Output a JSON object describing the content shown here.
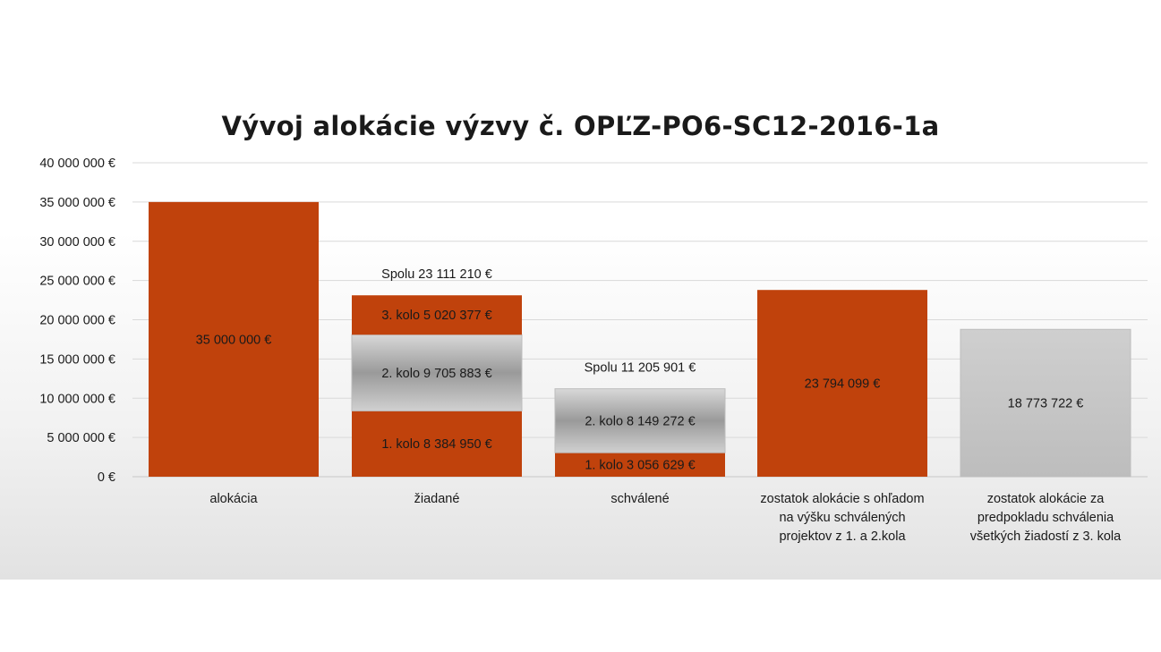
{
  "chart_data": {
    "type": "bar",
    "stacked": true,
    "title": "Vývoj alokácie výzvy č. OPĽZ-PO6-SC12-2016-1a",
    "xlabel": "",
    "ylabel": "",
    "ylim": [
      0,
      40000000
    ],
    "y_ticks": [
      0,
      5000000,
      10000000,
      15000000,
      20000000,
      25000000,
      30000000,
      35000000,
      40000000
    ],
    "y_tick_labels": [
      "0 €",
      "5 000 000 €",
      "10 000 000 €",
      "15 000 000 €",
      "20 000 000 €",
      "25 000 000 €",
      "30 000 000 €",
      "35 000 000 €",
      "40 000 000 €"
    ],
    "grid": true,
    "legend": "none",
    "categories": [
      "alokácia",
      "žiadané",
      "schválené",
      "zostatok alokácie s ohľadom na výšku schválených projektov z 1. a 2.kola",
      "zostatok alokácie za predpokladu schválenia všetkých žiadostí z 3. kola"
    ],
    "category_label_lines": [
      [
        "alokácia"
      ],
      [
        "žiadané"
      ],
      [
        "schválené"
      ],
      [
        "zostatok alokácie s ohľadom",
        "na výšku schválených",
        "projektov z 1. a 2.kola"
      ],
      [
        "zostatok alokácie za",
        "predpokladu schválenia",
        "všetkých žiadostí z 3. kola"
      ]
    ],
    "bars": [
      {
        "category": "alokácia",
        "total_label": "",
        "segments": [
          {
            "value": 35000000,
            "label": "35 000 000 €",
            "color": "#c0420c"
          }
        ]
      },
      {
        "category": "žiadané",
        "total_label": "Spolu 23 111 210 €",
        "segments": [
          {
            "value": 8384950,
            "label": "1. kolo 8 384 950 €",
            "color": "#c0420c"
          },
          {
            "value": 9705883,
            "label": "2. kolo 9 705 883 €",
            "color": "gray"
          },
          {
            "value": 5020377,
            "label": "3. kolo 5 020 377 €",
            "color": "#c0420c"
          }
        ]
      },
      {
        "category": "schválené",
        "total_label": "Spolu 11 205 901 €",
        "segments": [
          {
            "value": 3056629,
            "label": "1. kolo 3 056 629 €",
            "color": "#c0420c"
          },
          {
            "value": 8149272,
            "label": "2. kolo 8 149 272 €",
            "color": "gray"
          }
        ]
      },
      {
        "category": "zostatok alokácie s ohľadom na výšku schválených projektov z 1. a 2.kola",
        "total_label": "",
        "segments": [
          {
            "value": 23794099,
            "label": "23 794 099 €",
            "color": "#c0420c"
          }
        ]
      },
      {
        "category": "zostatok alokácie za predpokladu schválenia všetkých žiadostí z 3. kola",
        "total_label": "",
        "segments": [
          {
            "value": 18773722,
            "label": "18 773 722 €",
            "color": "lightgray"
          }
        ]
      }
    ],
    "colors": {
      "accent": "#c0420c",
      "gray_dark": "#8a8a8a",
      "gray_light": "#c4c4c4",
      "grid": "#d9d9d9"
    }
  }
}
